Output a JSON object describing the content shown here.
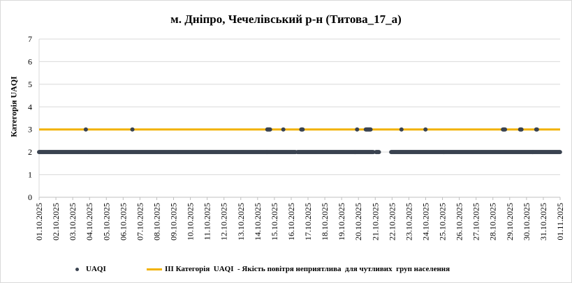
{
  "chart_data": {
    "type": "scatter",
    "title": "м. Дніпро, Чечелівський р-н (Титова_17_а)",
    "ylabel": "Категорія UAQI",
    "xlabel": "",
    "ylim": [
      0,
      7
    ],
    "yticks": [
      "0",
      "1",
      "2",
      "3",
      "4",
      "5",
      "6",
      "7"
    ],
    "grid": true,
    "legend_position": "bottom",
    "categories": [
      "01.10.2025",
      "02.10.2025",
      "03.10.2025",
      "04.10.2025",
      "05.10.2025",
      "06.10.2025",
      "07.10.2025",
      "08.10.2025",
      "09.10.2025",
      "10.10.2025",
      "11.10.2025",
      "12.10.2025",
      "13.10.2025",
      "14.10.2025",
      "15.10.2025",
      "16.10.2025",
      "17.10.2025",
      "18.10.2025",
      "19.10.2025",
      "20.10.2025",
      "21.10.2025",
      "22.10.2025",
      "23.10.2025",
      "24.10.2025",
      "25.10.2025",
      "26.10.2025",
      "27.10.2025",
      "28.10.2025",
      "29.10.2025",
      "30.10.2025",
      "31.10.2025",
      "01.11.2025"
    ],
    "series": [
      {
        "name": "UAQI",
        "color": "#3a4350",
        "marker": "dot",
        "category_2_ranges": [
          [
            0.0,
            15.28
          ],
          [
            15.38,
            19.88
          ],
          [
            20.05,
            20.22
          ],
          [
            20.95,
            31.0
          ]
        ],
        "category_3_points": [
          2.78,
          5.55,
          13.58,
          13.62,
          13.66,
          13.7,
          13.74,
          14.53,
          15.6,
          15.64,
          15.68,
          18.92,
          19.44,
          19.48,
          19.52,
          19.56,
          19.6,
          19.64,
          19.68,
          19.72,
          21.56,
          22.99,
          27.6,
          27.64,
          27.68,
          27.72,
          28.62,
          28.66,
          28.7,
          29.58,
          29.62
        ]
      },
      {
        "name": "ІІІ Категорія  UAQI  - Якість повітря неприятлива  для чутливих  груп населення",
        "color": "#f2b200",
        "marker": "line",
        "value": 3
      }
    ]
  }
}
